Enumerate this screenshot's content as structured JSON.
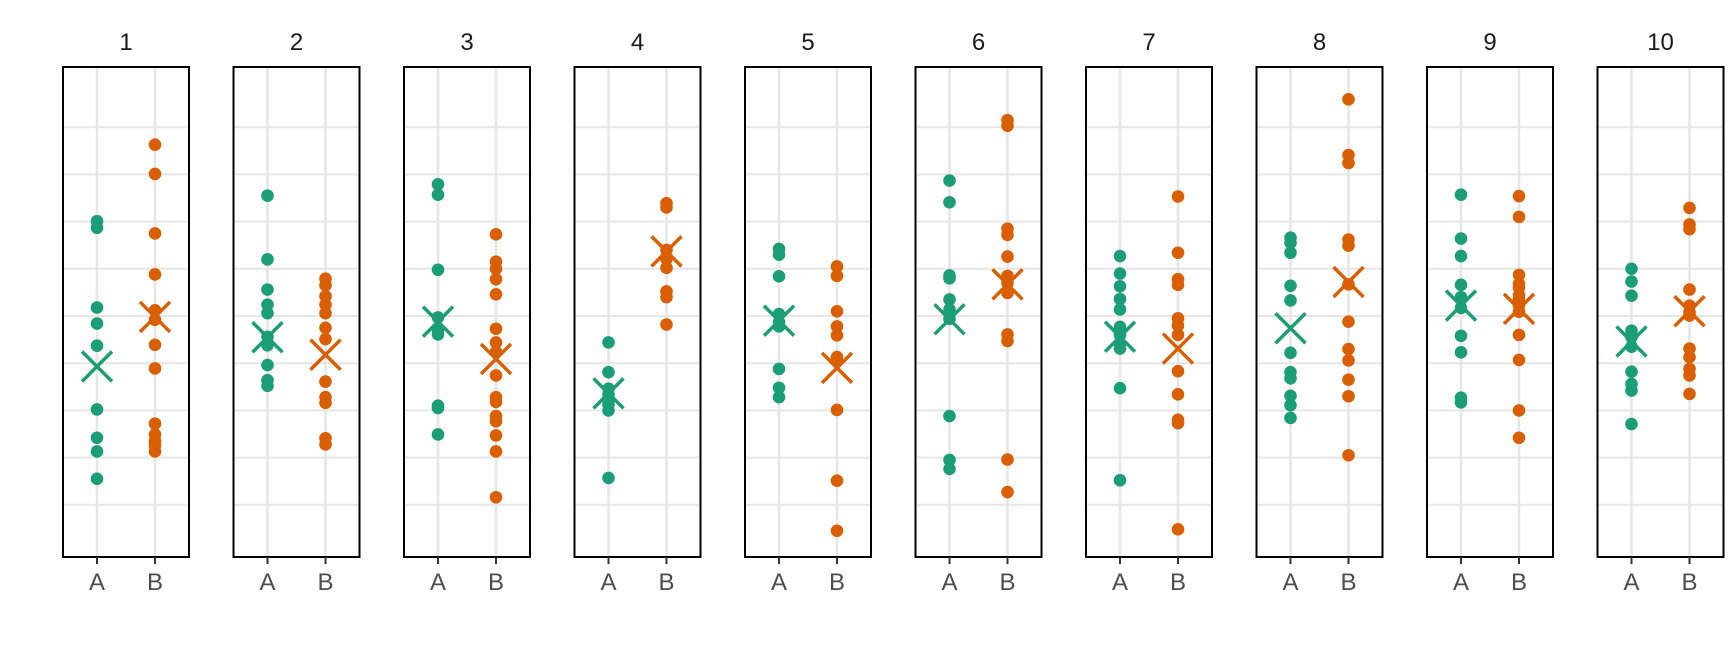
{
  "chart_data": {
    "type": "scatter",
    "layout": "faceted strip plot, 10 panels in one row",
    "x_categories": [
      "A",
      "B"
    ],
    "ylim": [
      0,
      1
    ],
    "y_axis_labels": "none shown",
    "grid": true,
    "colors": {
      "A": "#1b9e77",
      "B": "#d95f02",
      "panel_border": "#000000",
      "grid": "#e6e6e6"
    },
    "mean_marker": "cross (x)",
    "panels": [
      {
        "title": "1",
        "A": {
          "points": [
            0.701,
            0.687,
            0.518,
            0.484,
            0.437,
            0.302,
            0.242,
            0.213,
            0.155
          ],
          "mean": 0.393
        },
        "B": {
          "points": [
            0.863,
            0.801,
            0.675,
            0.588,
            0.512,
            0.492,
            0.439,
            0.389,
            0.272,
            0.249,
            0.235,
            0.226,
            0.213
          ],
          "mean": 0.498
        }
      },
      {
        "title": "2",
        "A": {
          "points": [
            0.755,
            0.62,
            0.556,
            0.524,
            0.506,
            0.456,
            0.438,
            0.396,
            0.364,
            0.352
          ],
          "mean": 0.455
        },
        "B": {
          "points": [
            0.579,
            0.565,
            0.542,
            0.524,
            0.506,
            0.475,
            0.451,
            0.361,
            0.328,
            0.316,
            0.241,
            0.228
          ],
          "mean": 0.418
        }
      },
      {
        "title": "3",
        "A": {
          "points": [
            0.779,
            0.757,
            0.598,
            0.497,
            0.471,
            0.461,
            0.31,
            0.305,
            0.249
          ],
          "mean": 0.488
        },
        "B": {
          "points": [
            0.673,
            0.615,
            0.6,
            0.578,
            0.546,
            0.473,
            0.444,
            0.424,
            0.374,
            0.328,
            0.318,
            0.288,
            0.277,
            0.247,
            0.213,
            0.116
          ],
          "mean": 0.409
        }
      },
      {
        "title": "4",
        "A": {
          "points": [
            0.444,
            0.381,
            0.346,
            0.333,
            0.322,
            0.312,
            0.3,
            0.157
          ],
          "mean": 0.336
        },
        "B": {
          "points": [
            0.739,
            0.73,
            0.64,
            0.621,
            0.602,
            0.552,
            0.54,
            0.482
          ],
          "mean": 0.637
        }
      },
      {
        "title": "5",
        "A": {
          "points": [
            0.642,
            0.63,
            0.584,
            0.504,
            0.487,
            0.478,
            0.388,
            0.348,
            0.328
          ],
          "mean": 0.49
        },
        "B": {
          "points": [
            0.605,
            0.585,
            0.51,
            0.478,
            0.459,
            0.413,
            0.405,
            0.301,
            0.151,
            0.045
          ],
          "mean": 0.39
        }
      },
      {
        "title": "6",
        "A": {
          "points": [
            0.787,
            0.741,
            0.586,
            0.58,
            0.535,
            0.514,
            0.494,
            0.288,
            0.195,
            0.176
          ],
          "mean": 0.493
        },
        "B": {
          "points": [
            0.915,
            0.903,
            0.685,
            0.672,
            0.626,
            0.585,
            0.57,
            0.549,
            0.461,
            0.447,
            0.196,
            0.127
          ],
          "mean": 0.567
        }
      },
      {
        "title": "7",
        "A": {
          "points": [
            0.627,
            0.59,
            0.563,
            0.536,
            0.514,
            0.477,
            0.46,
            0.441,
            0.431,
            0.347,
            0.152
          ],
          "mean": 0.456
        },
        "B": {
          "points": [
            0.753,
            0.634,
            0.578,
            0.566,
            0.495,
            0.48,
            0.46,
            0.383,
            0.334,
            0.28,
            0.273,
            0.048
          ],
          "mean": 0.431
        }
      },
      {
        "title": "8",
        "A": {
          "points": [
            0.666,
            0.655,
            0.634,
            0.564,
            0.533,
            0.422,
            0.381,
            0.368,
            0.331,
            0.311,
            0.284
          ],
          "mean": 0.474
        },
        "B": {
          "points": [
            0.959,
            0.841,
            0.824,
            0.662,
            0.649,
            0.567,
            0.488,
            0.43,
            0.406,
            0.365,
            0.33,
            0.205
          ],
          "mean": 0.572
        }
      },
      {
        "title": "9",
        "A": {
          "points": [
            0.757,
            0.664,
            0.627,
            0.566,
            0.54,
            0.517,
            0.458,
            0.423,
            0.327,
            0.317
          ],
          "mean": 0.522
        },
        "B": {
          "points": [
            0.754,
            0.71,
            0.587,
            0.568,
            0.56,
            0.544,
            0.536,
            0.523,
            0.509,
            0.46,
            0.407,
            0.3,
            0.242
          ],
          "mean": 0.515
        }
      },
      {
        "title": "10",
        "A": {
          "points": [
            0.6,
            0.573,
            0.543,
            0.469,
            0.455,
            0.435,
            0.382,
            0.356,
            0.342,
            0.271
          ],
          "mean": 0.446
        },
        "B": {
          "points": [
            0.729,
            0.694,
            0.684,
            0.556,
            0.522,
            0.508,
            0.501,
            0.431,
            0.413,
            0.388,
            0.374,
            0.335
          ],
          "mean": 0.51
        }
      }
    ]
  }
}
